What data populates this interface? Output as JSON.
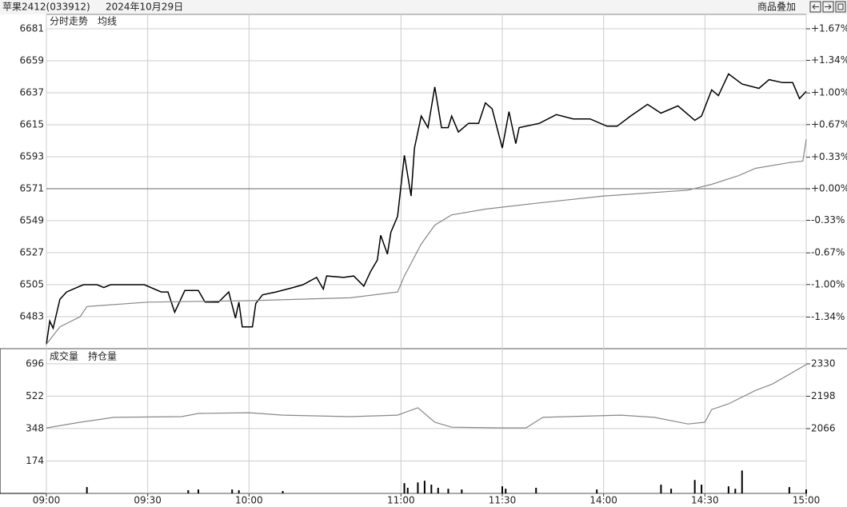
{
  "toolbar": {
    "button": "商品叠加"
  },
  "chart_data": [
    {
      "type": "line",
      "title": "苹果2412(033912)",
      "subtitle": "2024年10月29日",
      "xlim": [
        0,
        225
      ],
      "ylim": [
        6461,
        6681
      ],
      "y2lim": [
        -1.67,
        1.67
      ],
      "yticks": [
        6483,
        6505,
        6527,
        6549,
        6571,
        6593,
        6615,
        6637,
        6659,
        6681
      ],
      "y2ticks": [
        {
          "value": 1.67,
          "label": "+1.67%"
        },
        {
          "value": 1.34,
          "label": "+1.34%"
        },
        {
          "value": 1.0,
          "label": "+1.00%"
        },
        {
          "value": 0.67,
          "label": "+0.67%"
        },
        {
          "value": 0.33,
          "label": "+0.33%"
        },
        {
          "value": 0.0,
          "label": "+0.00%"
        },
        {
          "value": -0.33,
          "label": "-0.33%"
        },
        {
          "value": -0.67,
          "label": "-0.67%"
        },
        {
          "value": -1.0,
          "label": "-1.00%"
        },
        {
          "value": -1.34,
          "label": "-1.34%"
        }
      ],
      "grid": true,
      "series": [
        {
          "name": "分时走势",
          "color": "#000000",
          "x": [
            0,
            1,
            2,
            4,
            6,
            9,
            11,
            15,
            17,
            19,
            24,
            29,
            34,
            36,
            38,
            41,
            45,
            47,
            51,
            54,
            56,
            57,
            58,
            61,
            62,
            64,
            68,
            73,
            76,
            80,
            82,
            83,
            88,
            91,
            94,
            96,
            98,
            99,
            101,
            102,
            104,
            106,
            108,
            109,
            111,
            113,
            115,
            117,
            119,
            120,
            122,
            125,
            128,
            130,
            132,
            135,
            137,
            139,
            140,
            146,
            151,
            156,
            161,
            166,
            169,
            173,
            178,
            182,
            187,
            192,
            194,
            197,
            199,
            202,
            206,
            211,
            214,
            218,
            221,
            223,
            225
          ],
          "values": [
            6464,
            6480,
            6475,
            6495,
            6500,
            6503,
            6505,
            6505,
            6503,
            6505,
            6505,
            6505,
            6500,
            6500,
            6486,
            6501,
            6501,
            6493,
            6493,
            6500,
            6482,
            6493,
            6476,
            6476,
            6492,
            6498,
            6500,
            6503,
            6505,
            6510,
            6502,
            6511,
            6510,
            6511,
            6504,
            6514,
            6522,
            6539,
            6526,
            6541,
            6552,
            6594,
            6566,
            6599,
            6621,
            6613,
            6641,
            6613,
            6613,
            6621,
            6610,
            6616,
            6616,
            6630,
            6626,
            6599,
            6624,
            6602,
            6613,
            6616,
            6622,
            6619,
            6619,
            6614,
            6614,
            6621,
            6629,
            6623,
            6628,
            6618,
            6621,
            6639,
            6635,
            6650,
            6643,
            6640,
            6646,
            6644,
            6644,
            6633,
            6638
          ]
        },
        {
          "name": "均线",
          "color": "#888888",
          "x": [
            0,
            4,
            10,
            12,
            30,
            60,
            90,
            104,
            106,
            111,
            115,
            120,
            130,
            145,
            165,
            190,
            197,
            205,
            210,
            220,
            224,
            225
          ],
          "values": [
            6464,
            6476,
            6483,
            6490,
            6493,
            6494,
            6496,
            6500,
            6511,
            6533,
            6546,
            6553,
            6557,
            6561,
            6566,
            6570,
            6574,
            6580,
            6585,
            6589,
            6590,
            6605
          ]
        }
      ]
    },
    {
      "type": "bar",
      "xlim": [
        0,
        225
      ],
      "ylim": [
        0,
        777
      ],
      "y2lim": [
        1802,
        2392
      ],
      "xticks": [
        {
          "value": 0,
          "label": "09:00"
        },
        {
          "value": 30,
          "label": "09:30"
        },
        {
          "value": 60,
          "label": "10:00"
        },
        {
          "value": 105,
          "label": "11:00"
        },
        {
          "value": 135,
          "label": "11:30"
        },
        {
          "value": 165,
          "label": "14:00"
        },
        {
          "value": 195,
          "label": "14:30"
        },
        {
          "value": 225,
          "label": "15:00"
        }
      ],
      "yticks": [
        174,
        348,
        522,
        696
      ],
      "y2ticks": [
        2066,
        2198,
        2330
      ],
      "grid": true,
      "series": [
        {
          "name": "成交量",
          "color": "#000000",
          "x": [
            12,
            42,
            45,
            55,
            57,
            70,
            106,
            107,
            110,
            112,
            114,
            116,
            119,
            123,
            135,
            136,
            145,
            163,
            182,
            185,
            192,
            194,
            202,
            204,
            206,
            220,
            225
          ],
          "values": [
            34,
            17,
            21,
            21,
            17,
            13,
            55,
            30,
            59,
            68,
            47,
            30,
            25,
            21,
            38,
            25,
            30,
            21,
            47,
            25,
            72,
            47,
            38,
            25,
            123,
            34,
            21
          ]
        },
        {
          "name": "持仓量",
          "color": "#888888",
          "type": "line",
          "axis": "y2",
          "x": [
            0,
            10,
            20,
            40,
            45,
            60,
            70,
            90,
            104,
            110,
            115,
            120,
            135,
            142,
            147,
            170,
            180,
            190,
            195,
            197,
            202,
            210,
            215,
            225
          ],
          "values": [
            2069,
            2092,
            2112,
            2115,
            2128,
            2131,
            2121,
            2115,
            2121,
            2151,
            2092,
            2072,
            2069,
            2069,
            2112,
            2121,
            2112,
            2085,
            2092,
            2144,
            2167,
            2222,
            2248,
            2327
          ]
        }
      ]
    }
  ]
}
